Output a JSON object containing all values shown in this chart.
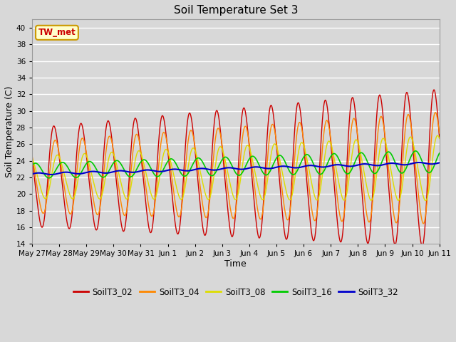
{
  "title": "Soil Temperature Set 3",
  "xlabel": "Time",
  "ylabel": "Soil Temperature (C)",
  "ylim": [
    14,
    41
  ],
  "yticks": [
    14,
    16,
    18,
    20,
    22,
    24,
    26,
    28,
    30,
    32,
    34,
    36,
    38,
    40
  ],
  "annotation": "TW_met",
  "bg_color": "#d8d8d8",
  "grid_color": "#ffffff",
  "series_order": [
    "SoilT3_02",
    "SoilT3_04",
    "SoilT3_08",
    "SoilT3_16",
    "SoilT3_32"
  ],
  "series": {
    "SoilT3_02": {
      "color": "#cc0000",
      "lw": 1.0
    },
    "SoilT3_04": {
      "color": "#ff8800",
      "lw": 1.0
    },
    "SoilT3_08": {
      "color": "#dddd00",
      "lw": 1.0
    },
    "SoilT3_16": {
      "color": "#00cc00",
      "lw": 1.2
    },
    "SoilT3_32": {
      "color": "#0000cc",
      "lw": 1.5
    }
  },
  "xtick_labels": [
    "May 27",
    "May 28",
    "May 29",
    "May 30",
    "May 31",
    "Jun 1",
    "Jun 2",
    "Jun 3",
    "Jun 4",
    "Jun 5",
    "Jun 6",
    "Jun 7",
    "Jun 8",
    "Jun 9",
    "Jun 10",
    "Jun 11"
  ],
  "xtick_positions": [
    0,
    1,
    2,
    3,
    4,
    5,
    6,
    7,
    8,
    9,
    10,
    11,
    12,
    13,
    14,
    15
  ],
  "figsize": [
    6.4,
    4.8
  ],
  "dpi": 100
}
